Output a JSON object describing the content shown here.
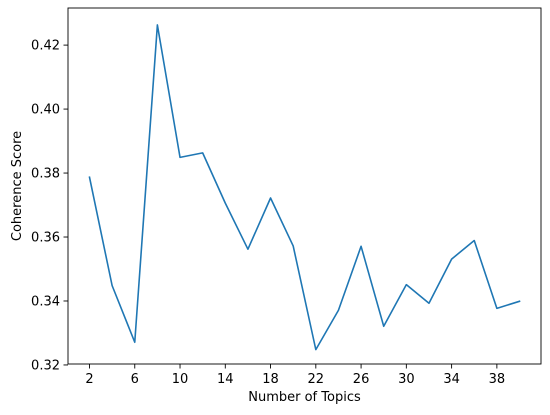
{
  "chart_data": {
    "type": "line",
    "xlabel": "Number of Topics",
    "ylabel": "Coherence Score",
    "xlim": [
      0.1,
      41.9
    ],
    "ylim": [
      0.3203,
      0.4316
    ],
    "xticks": [
      2,
      6,
      10,
      14,
      18,
      22,
      26,
      30,
      34,
      38
    ],
    "yticks": [
      0.32,
      0.34,
      0.36,
      0.38,
      0.4,
      0.42
    ],
    "ytick_labels": [
      "0.32",
      "0.34",
      "0.36",
      "0.38",
      "0.40",
      "0.42"
    ],
    "grid": false,
    "series": [
      {
        "color": "#1f77b4",
        "x": [
          2,
          4,
          6,
          8,
          10,
          12,
          14,
          16,
          18,
          20,
          22,
          24,
          26,
          28,
          30,
          32,
          34,
          36,
          38,
          40
        ],
        "y": [
          0.3787,
          0.3448,
          0.3271,
          0.4263,
          0.3849,
          0.3863,
          0.3706,
          0.3562,
          0.3722,
          0.3572,
          0.3248,
          0.3371,
          0.3571,
          0.3321,
          0.3451,
          0.3393,
          0.3531,
          0.3589,
          0.3377,
          0.3399
        ]
      }
    ]
  }
}
